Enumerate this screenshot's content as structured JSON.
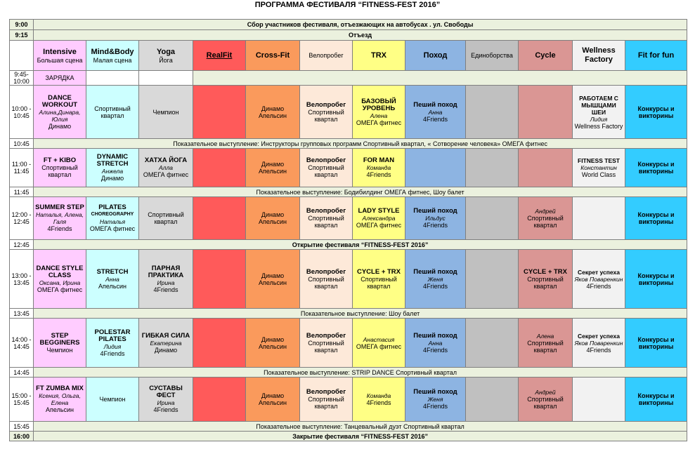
{
  "title": "ПРОГРАММА ФЕСТИВАЛЯ “FITNESS-FEST 2016”",
  "gathering": {
    "time": "9:00",
    "text": "Сбор участников фестиваля, отъезжающих на автобусах . ул. Свободы"
  },
  "departure": {
    "time": "9:15",
    "text": "Отъезд"
  },
  "headers": [
    {
      "title": "Intensive",
      "sub": "Большая сцена"
    },
    {
      "title": "Mind&Body",
      "sub": "Малая сцена"
    },
    {
      "title": "Yoga",
      "sub": "Йога"
    },
    {
      "title": "RealFit",
      "sub": ""
    },
    {
      "title": "Cross-Fit",
      "sub": ""
    },
    {
      "title": "Велопробег",
      "sub": ""
    },
    {
      "title": "TRX",
      "sub": ""
    },
    {
      "title": "Поход",
      "sub": ""
    },
    {
      "title": "Единоборства",
      "sub": ""
    },
    {
      "title": "Cycle",
      "sub": ""
    },
    {
      "title": "Wellness Factory",
      "sub": ""
    },
    {
      "title": "Fit for fun",
      "sub": ""
    }
  ],
  "warmup": {
    "time": "9:45-10:00",
    "text": "ЗАРЯДКА"
  },
  "slots": [
    {
      "time": "10:00 - 10:45",
      "c1": {
        "t": "DANCE WORKOUT",
        "n": "Алина,Динара, Юлия",
        "p": "Динамо"
      },
      "c2": {
        "t": "",
        "n": "",
        "p": "Спортивный квартал"
      },
      "c3": {
        "t": "",
        "n": "",
        "p": "Чемпион"
      },
      "c5": {
        "t": "",
        "n": "",
        "p": "Динамо Апельсин"
      },
      "c6": {
        "t": "Велопробег",
        "n": "",
        "p": "Спортивный квартал"
      },
      "c7": {
        "t": "БАЗОВЫЙ УРОВЕНЬ",
        "n": "Алена",
        "p": "ОМЕГА фитнес"
      },
      "c8": {
        "t": "Пеший поход",
        "n": "Анна",
        "p": "4Friends"
      },
      "c10": {
        "t": "",
        "n": "",
        "p": ""
      },
      "c11": {
        "t": "РАБОТАЕМ С МЫШЦАМИ ШЕИ",
        "n": "Лидия",
        "p": "Wellness Factory"
      },
      "c12": {
        "t": "Конкурсы и викторины",
        "n": "",
        "p": ""
      }
    },
    {
      "time": "11:00 - 11:45",
      "c1": {
        "t": "FT + KIBO",
        "n": "",
        "p": "Спортивный квартал"
      },
      "c2": {
        "t": "DYNAMIC STRETCH",
        "n": "Анжела",
        "p": "Динамо"
      },
      "c3": {
        "t": "ХАТХА ЙОГА",
        "n": "Алла",
        "p": "ОМЕГА фитнес"
      },
      "c5": {
        "t": "",
        "n": "",
        "p": "Динамо Апельсин"
      },
      "c6": {
        "t": "Велопробег",
        "n": "",
        "p": "Спортивный квартал"
      },
      "c7": {
        "t": "FOR MAN",
        "n": "Команда",
        "p": "4Friends"
      },
      "c8": {
        "t": "",
        "n": "",
        "p": ""
      },
      "c10": {
        "t": "",
        "n": "",
        "p": ""
      },
      "c11": {
        "t": "FITNESS TEST",
        "n": "Константин",
        "p": "World Class"
      },
      "c12": {
        "t": "Конкурсы и викторины",
        "n": "",
        "p": ""
      }
    },
    {
      "time": "12:00 - 12:45",
      "c1": {
        "t": "SUMMER STEP",
        "n": "Наталья, Алена, Галя",
        "p": "4Friends"
      },
      "c2": {
        "t": "PILATES",
        "s": "CHOREOGRAPHY",
        "n": "Наталья",
        "p": "ОМЕГА фитнес"
      },
      "c3": {
        "t": "",
        "n": "",
        "p": "Спортивный квартал"
      },
      "c5": {
        "t": "",
        "n": "",
        "p": "Динамо Апельсин"
      },
      "c6": {
        "t": "Велопробег",
        "n": "",
        "p": "Спортивный квартал"
      },
      "c7": {
        "t": "LADY STYLE",
        "n": "Александра",
        "p": "ОМЕГА фитнес"
      },
      "c8": {
        "t": "Пеший поход",
        "n": "Ильдус",
        "p": "4Friends"
      },
      "c10": {
        "t": "",
        "n": "Андрей",
        "p": "Спортивный квартал"
      },
      "c11": {
        "t": "",
        "n": "",
        "p": ""
      },
      "c12": {
        "t": "Конкурсы и викторины",
        "n": "",
        "p": ""
      }
    },
    {
      "time": "13:00 - 13:45",
      "c1": {
        "t": "DANCE STYLE CLASS",
        "n": "Оксана, Ирина",
        "p": "ОМЕГА фитнес"
      },
      "c2": {
        "t": "STRETCH",
        "n": "Анна",
        "p": "Апельсин"
      },
      "c3": {
        "t": "ПАРНАЯ ПРАКТИКА",
        "n": "Ирина",
        "p": "4Friends"
      },
      "c5": {
        "t": "",
        "n": "",
        "p": "Динамо Апельсин"
      },
      "c6": {
        "t": "Велопробег",
        "n": "",
        "p": "Спортивный квартал"
      },
      "c7": {
        "t": "CYCLE + TRX",
        "n": "",
        "p": "Спортивный квартал"
      },
      "c8": {
        "t": "Пеший поход",
        "n": "Женя",
        "p": "4Friends"
      },
      "c10": {
        "t": "CYCLE + TRX",
        "n": "",
        "p": "Спортивный квартал"
      },
      "c11": {
        "t": "Секрет успеха",
        "n": "Яков Поваренкин",
        "p": "4Friends"
      },
      "c12": {
        "t": "Конкурсы и викторины",
        "n": "",
        "p": ""
      }
    },
    {
      "time": "14:00 - 14:45",
      "c1": {
        "t": "STEP BEGGINERS",
        "n": "",
        "p": "Чемпион"
      },
      "c2": {
        "t": "POLESTAR PILATES",
        "n": "Лидия",
        "p": "4Friends"
      },
      "c3": {
        "t": "ГИБКАЯ СИЛА",
        "n": "Екатерина",
        "p": "Динамо"
      },
      "c5": {
        "t": "",
        "n": "",
        "p": "Динамо Апельсин"
      },
      "c6": {
        "t": "Велопробег",
        "n": "",
        "p": "Спортивный квартал"
      },
      "c7": {
        "t": "",
        "n": "Анастасия",
        "p": "ОМЕГА фитнес"
      },
      "c8": {
        "t": "Пеший поход",
        "n": "Анна",
        "p": "4Friends"
      },
      "c10": {
        "t": "",
        "n": "Алена",
        "p": "Спортивный квартал"
      },
      "c11": {
        "t": "Секрет успеха",
        "n": "Яков Поваренкин",
        "p": "4Friends"
      },
      "c12": {
        "t": "Конкурсы и викторины",
        "n": "",
        "p": ""
      }
    },
    {
      "time": "15:00 - 15:45",
      "c1": {
        "t": "FT ZUMBA MIX",
        "n": "Ксения, Ольга, Елена",
        "p": "Апельсин"
      },
      "c2": {
        "t": "",
        "n": "",
        "p": "Чемпион"
      },
      "c3": {
        "t": "СУСТАВЫ ФЕСТ",
        "n": "Ирина",
        "p": "4Friends"
      },
      "c5": {
        "t": "",
        "n": "",
        "p": "Динамо Апельсин"
      },
      "c6": {
        "t": "Велопробег",
        "n": "",
        "p": "Спортивный квартал"
      },
      "c7": {
        "t": "",
        "n": "Команда",
        "p": "4Friends"
      },
      "c8": {
        "t": "Пеший поход",
        "n": "Женя",
        "p": "4Friends"
      },
      "c10": {
        "t": "",
        "n": "Андрей",
        "p": "Спортивный квартал"
      },
      "c11": {
        "t": "",
        "n": "",
        "p": ""
      },
      "c12": {
        "t": "Конкурсы и викторины",
        "n": "",
        "p": ""
      }
    }
  ],
  "breaks": [
    {
      "time": "10:45",
      "text": "Показательное выступление: Инструкторы групповых программ Спортивный квартал, « Сотворение человека» ОМЕГА фитнес"
    },
    {
      "time": "11:45",
      "text": "Показательное выступление: Бодибилдинг ОМЕГА фитнес, Шоу балет"
    },
    {
      "time": "12:45",
      "text": "Открытие фестиваля “FITNESS-FEST 2016”"
    },
    {
      "time": "13:45",
      "text": "Показательное выступление: Шоу балет"
    },
    {
      "time": "14:45",
      "text": "Показательное выступление: STRIP DANCE Спортивный квартал"
    },
    {
      "time": "15:45",
      "text": "Показательное выступление: Танцевальный дуэт Спортивный квартал"
    }
  ],
  "closing": {
    "time": "16:00",
    "text": "Закрытие фестиваля “FITNESS-FEST 2016”"
  },
  "colors": {
    "intensive": "#ffccff",
    "mindbody": "#ccffff",
    "yoga": "#d9d9d9",
    "realfit": "#ff5a5a",
    "crossfit": "#fa9a5c",
    "velo": "#fde9d9",
    "trx": "#ffff85",
    "pohod": "#8db4e2",
    "edinob": "#c0c0c0",
    "cycle": "#da9694",
    "wellness": "#f2f2f2",
    "fitforfun": "#33ccff"
  }
}
